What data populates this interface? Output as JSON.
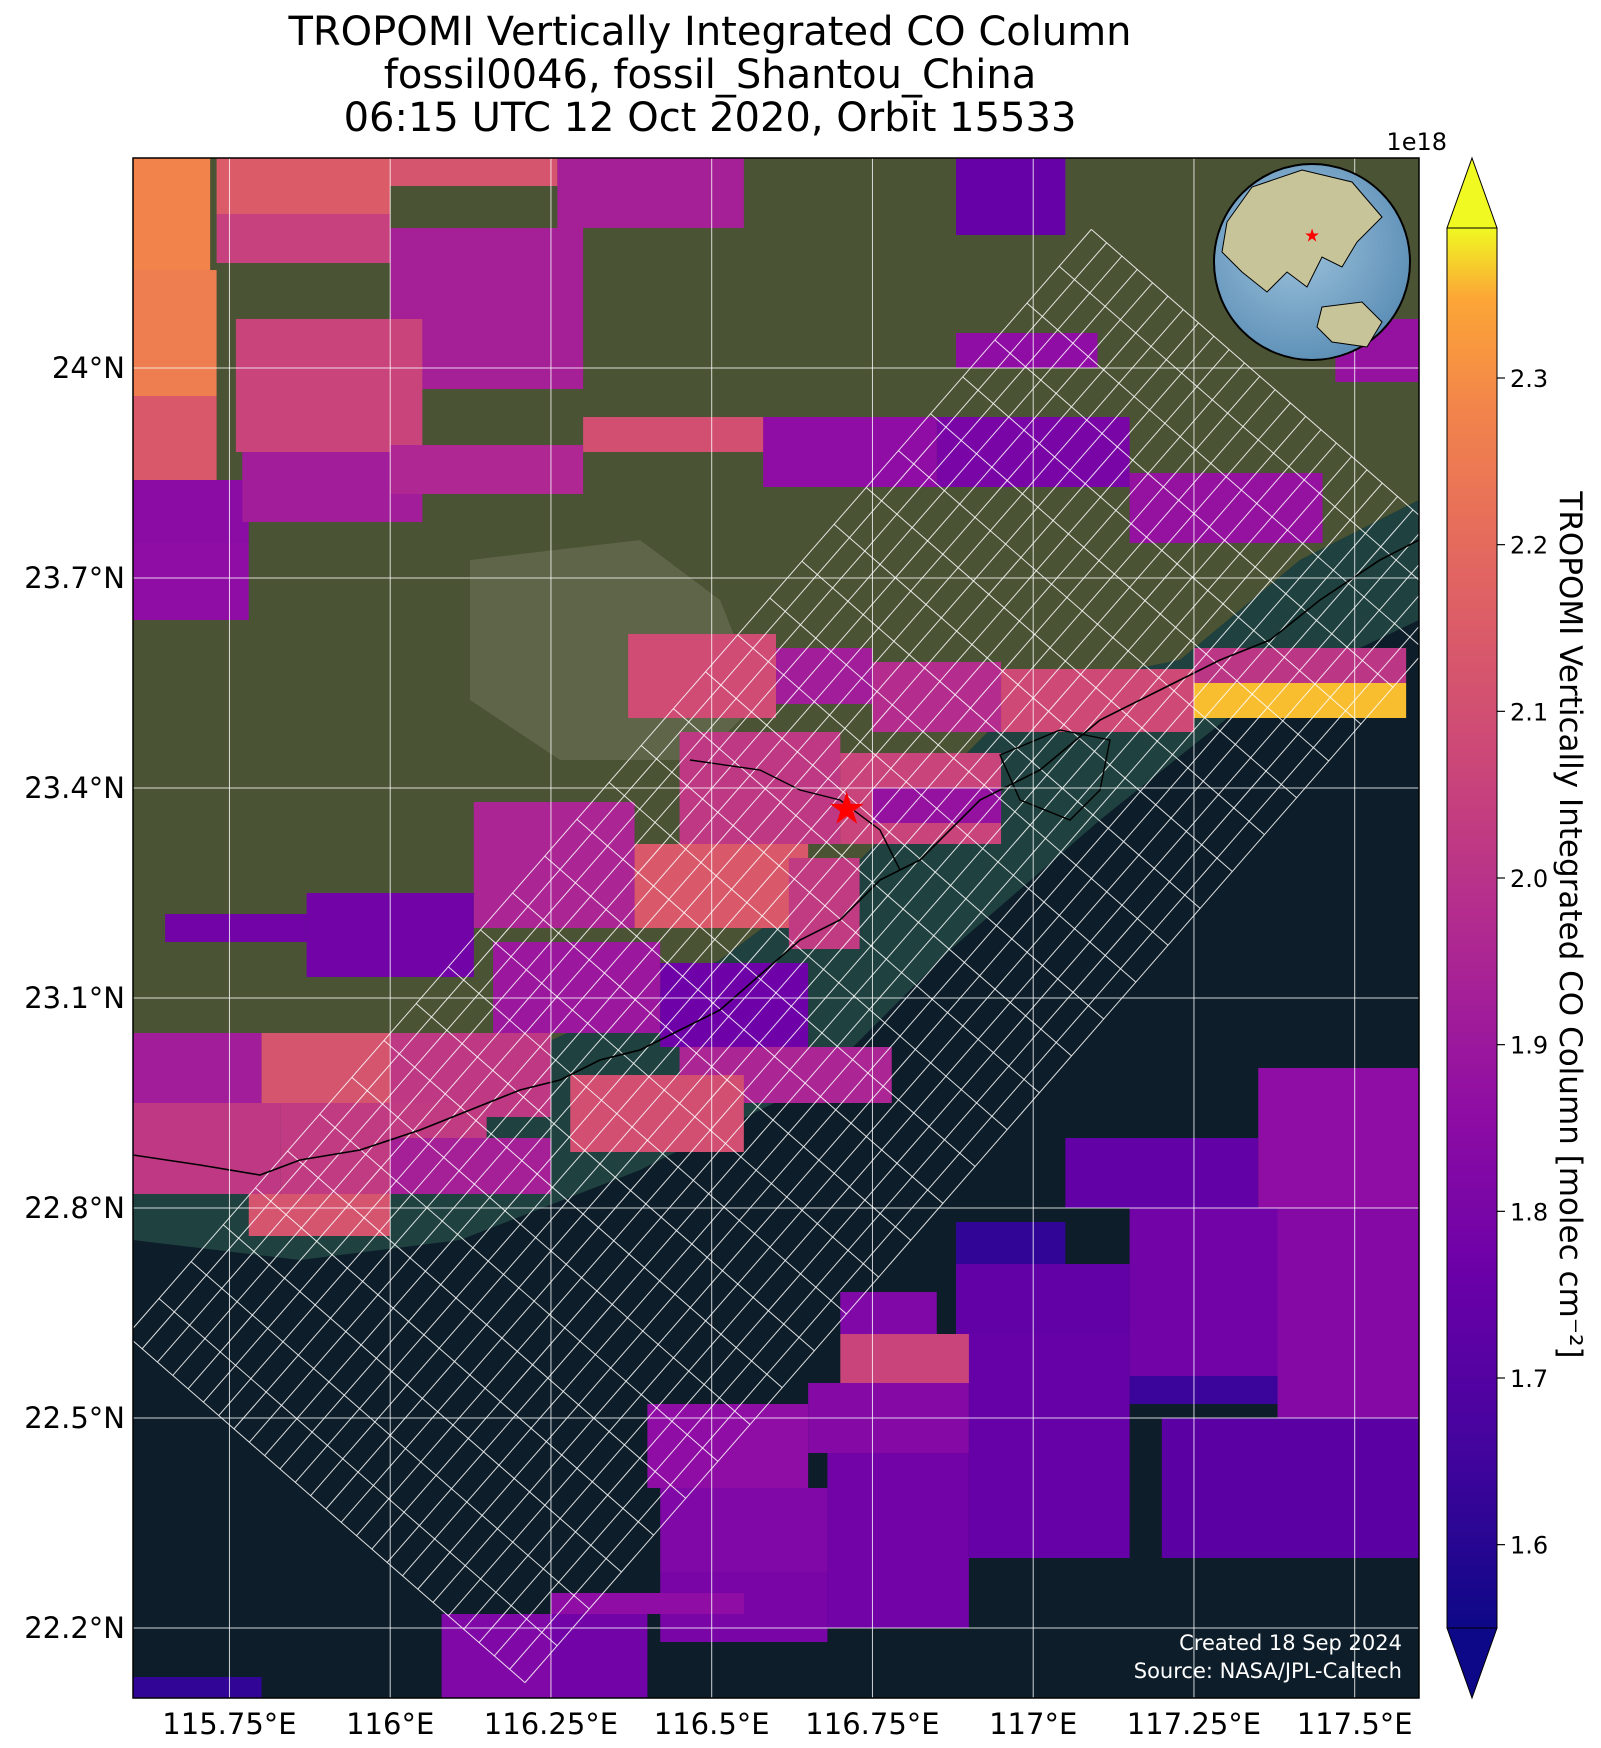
{
  "title": {
    "line1": "TROPOMI Vertically Integrated CO Column",
    "line2": "fossil0046, fossil_Shantou_China",
    "line3": "06:15 UTC 12 Oct 2020, Orbit 15533"
  },
  "map": {
    "lon_range": [
      115.6,
      117.6
    ],
    "lat_range": [
      22.1,
      24.3
    ],
    "lon_ticks": [
      115.75,
      116.0,
      116.25,
      116.5,
      116.75,
      117.0,
      117.25,
      117.5
    ],
    "lon_tick_labels": [
      "115.75°E",
      "116°E",
      "116.25°E",
      "116.5°E",
      "116.75°E",
      "117°E",
      "117.25°E",
      "117.5°E"
    ],
    "lat_ticks": [
      22.2,
      22.5,
      22.8,
      23.1,
      23.4,
      23.7,
      24.0
    ],
    "lat_tick_labels": [
      "22.2°N",
      "22.5°N",
      "22.8°N",
      "23.1°N",
      "23.4°N",
      "23.7°N",
      "24°N"
    ],
    "gridlines": true,
    "site_marker": {
      "name": "fossil_Shantou_China",
      "lon": 116.71,
      "lat": 23.37,
      "symbol": "star",
      "color": "#ff0000"
    },
    "inset_globe": {
      "position": "top-right",
      "marker_color": "#ff0000"
    },
    "credits": [
      "Created 18 Sep 2024",
      "Source: NASA/JPL-Caltech"
    ]
  },
  "colorbar": {
    "label": "TROPOMI Vertically Integrated CO Column [molec cm⁻²]",
    "exponent_label": "1e18",
    "ticks": [
      1.6,
      1.7,
      1.8,
      1.9,
      2.0,
      2.1,
      2.2,
      2.3
    ],
    "tick_labels": [
      "1.6",
      "1.7",
      "1.8",
      "1.9",
      "2.0",
      "2.1",
      "2.2",
      "2.3"
    ],
    "range": [
      1.55,
      2.39
    ],
    "colormap": "plasma",
    "extend": "both"
  },
  "chart_data": {
    "type": "heatmap",
    "title": "TROPOMI Vertically Integrated CO Column",
    "xlabel": "",
    "ylabel": "",
    "xlim": [
      115.6,
      117.6
    ],
    "ylim": [
      22.1,
      24.3
    ],
    "units": "1e18 molec cm^-2",
    "cells": [
      {
        "lon": [
          115.6,
          115.72
        ],
        "lat": [
          24.14,
          24.3
        ],
        "value": 2.28
      },
      {
        "lon": [
          115.6,
          115.73
        ],
        "lat": [
          23.96,
          24.14
        ],
        "value": 2.26
      },
      {
        "lon": [
          115.6,
          115.73
        ],
        "lat": [
          23.84,
          23.96
        ],
        "value": 2.14
      },
      {
        "lon": [
          115.6,
          115.78
        ],
        "lat": [
          23.75,
          23.84
        ],
        "value": 1.85
      },
      {
        "lon": [
          115.6,
          115.78
        ],
        "lat": [
          23.64,
          23.75
        ],
        "value": 1.86
      },
      {
        "lon": [
          115.73,
          116.0
        ],
        "lat": [
          24.22,
          24.3
        ],
        "value": 2.15
      },
      {
        "lon": [
          115.73,
          116.0
        ],
        "lat": [
          24.15,
          24.22
        ],
        "value": 2.05
      },
      {
        "lon": [
          116.0,
          116.26
        ],
        "lat": [
          24.26,
          24.3
        ],
        "value": 2.12
      },
      {
        "lon": [
          116.26,
          116.55
        ],
        "lat": [
          24.2,
          24.3
        ],
        "value": 1.93
      },
      {
        "lon": [
          116.0,
          116.3
        ],
        "lat": [
          23.97,
          24.2
        ],
        "value": 1.93
      },
      {
        "lon": [
          115.76,
          116.05
        ],
        "lat": [
          23.88,
          24.07
        ],
        "value": 2.06
      },
      {
        "lon": [
          115.77,
          116.05
        ],
        "lat": [
          23.78,
          23.88
        ],
        "value": 1.92
      },
      {
        "lon": [
          116.0,
          116.3
        ],
        "lat": [
          23.82,
          23.89
        ],
        "value": 1.96
      },
      {
        "lon": [
          116.3,
          116.6
        ],
        "lat": [
          23.88,
          23.93
        ],
        "value": 2.1
      },
      {
        "lon": [
          116.58,
          116.85
        ],
        "lat": [
          23.83,
          23.93
        ],
        "value": 1.86
      },
      {
        "lon": [
          116.85,
          117.15
        ],
        "lat": [
          23.83,
          23.93
        ],
        "value": 1.8
      },
      {
        "lon": [
          117.15,
          117.45
        ],
        "lat": [
          23.75,
          23.85
        ],
        "value": 1.88
      },
      {
        "lon": [
          116.88,
          117.1
        ],
        "lat": [
          24.0,
          24.05
        ],
        "value": 1.86
      },
      {
        "lon": [
          116.88,
          117.05
        ],
        "lat": [
          24.19,
          24.3
        ],
        "value": 1.75
      },
      {
        "lon": [
          117.47,
          117.6
        ],
        "lat": [
          23.98,
          24.07
        ],
        "value": 1.88
      },
      {
        "lon": [
          116.37,
          116.6
        ],
        "lat": [
          23.5,
          23.62
        ],
        "value": 2.09
      },
      {
        "lon": [
          116.6,
          116.75
        ],
        "lat": [
          23.52,
          23.6
        ],
        "value": 1.92
      },
      {
        "lon": [
          116.75,
          116.95
        ],
        "lat": [
          23.48,
          23.58
        ],
        "value": 1.98
      },
      {
        "lon": [
          116.95,
          117.25
        ],
        "lat": [
          23.48,
          23.57
        ],
        "value": 2.08
      },
      {
        "lon": [
          117.25,
          117.58
        ],
        "lat": [
          23.55,
          23.6
        ],
        "value": 2.01
      },
      {
        "lon": [
          117.25,
          117.58
        ],
        "lat": [
          23.5,
          23.55
        ],
        "value": 2.36
      },
      {
        "lon": [
          116.45,
          116.7
        ],
        "lat": [
          23.32,
          23.48
        ],
        "value": 2.02
      },
      {
        "lon": [
          116.7,
          116.95
        ],
        "lat": [
          23.32,
          23.45
        ],
        "value": 2.06
      },
      {
        "lon": [
          116.75,
          116.95
        ],
        "lat": [
          23.35,
          23.4
        ],
        "value": 1.88
      },
      {
        "lon": [
          116.38,
          116.65
        ],
        "lat": [
          23.2,
          23.32
        ],
        "value": 2.14
      },
      {
        "lon": [
          116.62,
          116.73
        ],
        "lat": [
          23.17,
          23.3
        ],
        "value": 2.03
      },
      {
        "lon": [
          116.13,
          116.38
        ],
        "lat": [
          23.2,
          23.38
        ],
        "value": 1.95
      },
      {
        "lon": [
          115.87,
          116.13
        ],
        "lat": [
          23.13,
          23.25
        ],
        "value": 1.78
      },
      {
        "lon": [
          115.65,
          115.87
        ],
        "lat": [
          23.18,
          23.22
        ],
        "value": 1.78
      },
      {
        "lon": [
          116.16,
          116.42
        ],
        "lat": [
          23.05,
          23.18
        ],
        "value": 1.9
      },
      {
        "lon": [
          116.42,
          116.65
        ],
        "lat": [
          23.03,
          23.15
        ],
        "value": 1.77
      },
      {
        "lon": [
          116.45,
          116.78
        ],
        "lat": [
          22.95,
          23.03
        ],
        "value": 1.95
      },
      {
        "lon": [
          116.28,
          116.55
        ],
        "lat": [
          22.88,
          22.99
        ],
        "value": 2.1
      },
      {
        "lon": [
          115.6,
          115.8
        ],
        "lat": [
          22.95,
          23.05
        ],
        "value": 1.92
      },
      {
        "lon": [
          115.8,
          116.0
        ],
        "lat": [
          22.95,
          23.05
        ],
        "value": 2.12
      },
      {
        "lon": [
          116.0,
          116.25
        ],
        "lat": [
          22.93,
          23.05
        ],
        "value": 2.02
      },
      {
        "lon": [
          115.6,
          115.83
        ],
        "lat": [
          22.82,
          22.95
        ],
        "value": 2.02
      },
      {
        "lon": [
          115.83,
          116.15
        ],
        "lat": [
          22.82,
          22.95
        ],
        "value": 2.03
      },
      {
        "lon": [
          115.78,
          116.0
        ],
        "lat": [
          22.76,
          22.82
        ],
        "value": 2.12
      },
      {
        "lon": [
          116.0,
          116.25
        ],
        "lat": [
          22.82,
          22.9
        ],
        "value": 1.93
      },
      {
        "lon": [
          116.7,
          116.85
        ],
        "lat": [
          22.62,
          22.68
        ],
        "value": 1.82
      },
      {
        "lon": [
          116.7,
          116.95
        ],
        "lat": [
          22.55,
          22.62
        ],
        "value": 2.06
      },
      {
        "lon": [
          116.65,
          116.9
        ],
        "lat": [
          22.45,
          22.55
        ],
        "value": 1.83
      },
      {
        "lon": [
          116.4,
          116.65
        ],
        "lat": [
          22.4,
          22.52
        ],
        "value": 1.86
      },
      {
        "lon": [
          116.42,
          116.68
        ],
        "lat": [
          22.28,
          22.4
        ],
        "value": 1.82
      },
      {
        "lon": [
          116.42,
          116.68
        ],
        "lat": [
          22.18,
          22.28
        ],
        "value": 1.8
      },
      {
        "lon": [
          116.68,
          116.9
        ],
        "lat": [
          22.2,
          22.45
        ],
        "value": 1.78
      },
      {
        "lon": [
          116.9,
          117.15
        ],
        "lat": [
          22.3,
          22.62
        ],
        "value": 1.75
      },
      {
        "lon": [
          116.88,
          117.05
        ],
        "lat": [
          22.72,
          22.78
        ],
        "value": 1.62
      },
      {
        "lon": [
          116.88,
          117.15
        ],
        "lat": [
          22.62,
          22.72
        ],
        "value": 1.74
      },
      {
        "lon": [
          117.05,
          117.35
        ],
        "lat": [
          22.8,
          22.9
        ],
        "value": 1.74
      },
      {
        "lon": [
          117.35,
          117.6
        ],
        "lat": [
          22.8,
          23.0
        ],
        "value": 1.86
      },
      {
        "lon": [
          117.15,
          117.4
        ],
        "lat": [
          22.56,
          22.8
        ],
        "value": 1.78
      },
      {
        "lon": [
          117.15,
          117.38
        ],
        "lat": [
          22.52,
          22.56
        ],
        "value": 1.64
      },
      {
        "lon": [
          117.38,
          117.6
        ],
        "lat": [
          22.5,
          22.8
        ],
        "value": 1.83
      },
      {
        "lon": [
          117.2,
          117.6
        ],
        "lat": [
          22.3,
          22.5
        ],
        "value": 1.72
      },
      {
        "lon": [
          116.08,
          116.25
        ],
        "lat": [
          22.1,
          22.22
        ],
        "value": 1.82
      },
      {
        "lon": [
          116.25,
          116.4
        ],
        "lat": [
          22.1,
          22.22
        ],
        "value": 1.78
      },
      {
        "lon": [
          116.25,
          116.55
        ],
        "lat": [
          22.22,
          22.25
        ],
        "value": 1.86
      },
      {
        "lon": [
          115.6,
          115.8
        ],
        "lat": [
          22.1,
          22.13
        ],
        "value": 1.62
      }
    ],
    "target_grid_extent": {
      "lon": [
        115.9,
        117.4
      ],
      "lat": [
        22.37,
        23.95
      ]
    }
  }
}
